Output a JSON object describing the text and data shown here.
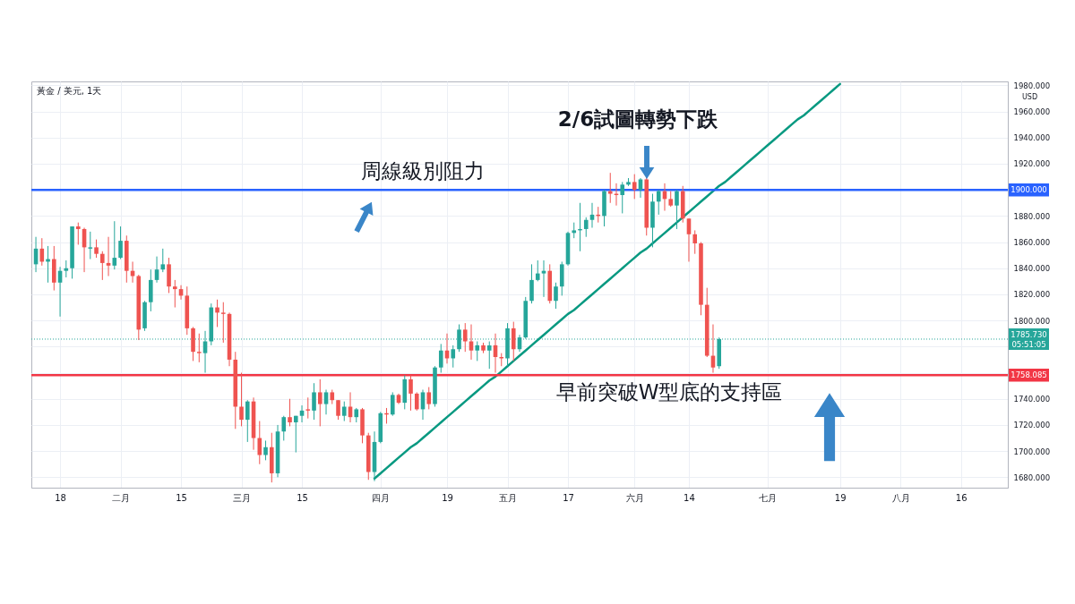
{
  "chart_data": {
    "type": "candlestick",
    "title": "黃金 / 美元, 1天",
    "ylabel": "USD",
    "categories": [
      null,
      null,
      null,
      null,
      "18",
      null,
      null,
      null,
      null,
      null,
      null,
      null,
      null,
      null,
      "二月",
      null,
      null,
      null,
      null,
      null,
      null,
      null,
      null,
      null,
      "15",
      null,
      null,
      null,
      null,
      null,
      null,
      null,
      null,
      null,
      "三月",
      null,
      null,
      null,
      null,
      null,
      null,
      null,
      null,
      null,
      "15",
      null,
      null,
      null,
      null,
      null,
      null,
      null,
      null,
      null,
      null,
      null,
      null,
      "四月",
      null,
      null,
      null,
      null,
      null,
      null,
      null,
      null,
      null,
      null,
      "19",
      null,
      null,
      null,
      null,
      null,
      null,
      null,
      null,
      null,
      "五月",
      null,
      null,
      null,
      null,
      null,
      null,
      null,
      null,
      null,
      "17",
      null,
      null,
      null,
      null,
      null,
      null,
      null,
      null,
      null,
      null,
      "六月",
      null,
      null,
      null,
      null,
      null,
      null,
      null,
      null,
      "14",
      null,
      null,
      null,
      null,
      null,
      null,
      null,
      null,
      null,
      null,
      null,
      null,
      "七月",
      null,
      null,
      null,
      null,
      null,
      null,
      null,
      null,
      null,
      null,
      null,
      "19",
      null,
      null,
      null,
      null,
      null,
      null,
      null,
      null,
      null,
      "八月",
      null,
      null,
      null,
      null,
      null,
      null,
      null,
      null,
      null,
      "16",
      null,
      null,
      null,
      null,
      null,
      null,
      null
    ],
    "ohlc": [
      [
        1843,
        1864,
        1837,
        1855
      ],
      [
        1855,
        1863,
        1842,
        1845
      ],
      [
        1845,
        1857,
        1829,
        1847
      ],
      [
        1847,
        1857,
        1823,
        1829
      ],
      [
        1829,
        1841,
        1803,
        1838
      ],
      [
        1838,
        1846,
        1833,
        1840
      ],
      [
        1840,
        1872,
        1832,
        1872
      ],
      [
        1872,
        1875,
        1858,
        1870
      ],
      [
        1870,
        1871,
        1837,
        1856
      ],
      [
        1855,
        1868,
        1847,
        1856
      ],
      [
        1856,
        1862,
        1848,
        1851
      ],
      [
        1851,
        1853,
        1831,
        1844
      ],
      [
        1844,
        1864,
        1834,
        1842
      ],
      [
        1842,
        1876,
        1839,
        1848
      ],
      [
        1848,
        1872,
        1847,
        1861
      ],
      [
        1861,
        1865,
        1829,
        1838
      ],
      [
        1838,
        1845,
        1829,
        1834
      ],
      [
        1834,
        1835,
        1785,
        1793
      ],
      [
        1794,
        1815,
        1792,
        1814
      ],
      [
        1814,
        1839,
        1807,
        1831
      ],
      [
        1831,
        1849,
        1829,
        1839
      ],
      [
        1839,
        1855,
        1837,
        1843
      ],
      [
        1843,
        1848,
        1821,
        1826
      ],
      [
        1826,
        1831,
        1810,
        1824
      ],
      [
        1824,
        1827,
        1816,
        1819
      ],
      [
        1819,
        1826,
        1789,
        1794
      ],
      [
        1794,
        1795,
        1769,
        1776
      ],
      [
        1776,
        1790,
        1768,
        1775
      ],
      [
        1775,
        1792,
        1760,
        1784
      ],
      [
        1784,
        1813,
        1781,
        1810
      ],
      [
        1810,
        1816,
        1795,
        1806
      ],
      [
        1806,
        1814,
        1783,
        1805
      ],
      [
        1805,
        1806,
        1765,
        1770
      ],
      [
        1770,
        1776,
        1717,
        1734
      ],
      [
        1734,
        1760,
        1719,
        1724
      ],
      [
        1724,
        1739,
        1707,
        1738
      ],
      [
        1738,
        1741,
        1701,
        1710
      ],
      [
        1710,
        1723,
        1690,
        1697
      ],
      [
        1697,
        1708,
        1693,
        1703
      ],
      [
        1703,
        1714,
        1676,
        1683
      ],
      [
        1683,
        1720,
        1680,
        1715
      ],
      [
        1715,
        1727,
        1708,
        1726
      ],
      [
        1726,
        1740,
        1719,
        1722
      ],
      [
        1722,
        1727,
        1699,
        1727
      ],
      [
        1727,
        1735,
        1722,
        1731
      ],
      [
        1732,
        1741,
        1725,
        1731
      ],
      [
        1731,
        1752,
        1724,
        1745
      ],
      [
        1745,
        1755,
        1719,
        1736
      ],
      [
        1736,
        1747,
        1728,
        1745
      ],
      [
        1745,
        1747,
        1736,
        1739
      ],
      [
        1739,
        1739,
        1724,
        1727
      ],
      [
        1727,
        1738,
        1723,
        1734
      ],
      [
        1734,
        1745,
        1722,
        1726
      ],
      [
        1726,
        1733,
        1722,
        1732
      ],
      [
        1732,
        1733,
        1706,
        1712
      ],
      [
        1712,
        1714,
        1678,
        1684
      ],
      [
        1684,
        1715,
        1677,
        1707
      ],
      [
        1707,
        1730,
        1706,
        1729
      ],
      [
        1729,
        1733,
        1721,
        1728
      ],
      [
        1728,
        1745,
        1727,
        1743
      ],
      [
        1743,
        1744,
        1736,
        1737
      ],
      [
        1737,
        1758,
        1732,
        1755
      ],
      [
        1755,
        1758,
        1731,
        1744
      ],
      [
        1744,
        1745,
        1731,
        1732
      ],
      [
        1732,
        1747,
        1724,
        1745
      ],
      [
        1745,
        1749,
        1732,
        1736
      ],
      [
        1736,
        1765,
        1734,
        1764
      ],
      [
        1764,
        1782,
        1760,
        1777
      ],
      [
        1777,
        1790,
        1767,
        1771
      ],
      [
        1771,
        1781,
        1764,
        1778
      ],
      [
        1778,
        1797,
        1776,
        1793
      ],
      [
        1793,
        1798,
        1776,
        1784
      ],
      [
        1784,
        1797,
        1770,
        1777
      ],
      [
        1777,
        1784,
        1769,
        1781
      ],
      [
        1781,
        1783,
        1775,
        1777
      ],
      [
        1777,
        1784,
        1763,
        1781
      ],
      [
        1781,
        1790,
        1760,
        1772
      ],
      [
        1772,
        1775,
        1765,
        1771
      ],
      [
        1771,
        1798,
        1765,
        1794
      ],
      [
        1794,
        1799,
        1769,
        1778
      ],
      [
        1778,
        1789,
        1776,
        1787
      ],
      [
        1787,
        1818,
        1786,
        1815
      ],
      [
        1815,
        1843,
        1813,
        1831
      ],
      [
        1831,
        1846,
        1830,
        1836
      ],
      [
        1836,
        1846,
        1818,
        1838
      ],
      [
        1838,
        1843,
        1813,
        1815
      ],
      [
        1815,
        1829,
        1809,
        1826
      ],
      [
        1826,
        1845,
        1819,
        1843
      ],
      [
        1843,
        1868,
        1842,
        1867
      ],
      [
        1867,
        1875,
        1863,
        1869
      ],
      [
        1869,
        1890,
        1853,
        1870
      ],
      [
        1870,
        1879,
        1864,
        1877
      ],
      [
        1877,
        1890,
        1871,
        1881
      ],
      [
        1881,
        1887,
        1875,
        1880
      ],
      [
        1880,
        1900,
        1872,
        1899
      ],
      [
        1899,
        1913,
        1890,
        1897
      ],
      [
        1897,
        1905,
        1888,
        1896
      ],
      [
        1896,
        1906,
        1882,
        1904
      ],
      [
        1904,
        1909,
        1903,
        1906
      ],
      [
        1906,
        1912,
        1893,
        1900
      ],
      [
        1900,
        1909,
        1894,
        1908
      ],
      [
        1908,
        1910,
        1865,
        1871
      ],
      [
        1871,
        1897,
        1856,
        1891
      ],
      [
        1891,
        1900,
        1881,
        1899
      ],
      [
        1899,
        1905,
        1884,
        1893
      ],
      [
        1893,
        1899,
        1887,
        1888
      ],
      [
        1888,
        1900,
        1870,
        1899
      ],
      [
        1899,
        1903,
        1875,
        1878
      ],
      [
        1878,
        1878,
        1845,
        1866
      ],
      [
        1866,
        1869,
        1851,
        1859
      ],
      [
        1859,
        1860,
        1804,
        1812
      ],
      [
        1812,
        1825,
        1772,
        1773
      ],
      [
        1773,
        1797,
        1760,
        1764
      ],
      [
        1765,
        1787,
        1763,
        1785.73
      ],
      null,
      null,
      null,
      null,
      null,
      null,
      null,
      null,
      null,
      null,
      null,
      null,
      null,
      null,
      null,
      null,
      null,
      null,
      null,
      null,
      null,
      null,
      null,
      null,
      null,
      null,
      null,
      null,
      null,
      null,
      null,
      null,
      null,
      null,
      null,
      null,
      null,
      null,
      null,
      null,
      null,
      null,
      null,
      null,
      null,
      null,
      null
    ],
    "colors": [
      "#26a69a",
      "#ef5350",
      "#26a69a",
      "#ef5350",
      "#26a69a",
      "#26a69a",
      "#26a69a",
      "#ef5350",
      "#ef5350",
      "#26a69a",
      "#ef5350",
      "#ef5350",
      "#ef5350",
      "#26a69a",
      "#26a69a",
      "#ef5350",
      "#ef5350",
      "#ef5350",
      "#26a69a",
      "#26a69a",
      "#26a69a",
      "#26a69a",
      "#ef5350",
      "#ef5350",
      "#ef5350",
      "#ef5350",
      "#ef5350",
      "#ef5350",
      "#26a69a",
      "#26a69a",
      "#ef5350",
      "#ef5350",
      "#ef5350",
      "#ef5350",
      "#ef5350",
      "#26a69a",
      "#ef5350",
      "#ef5350",
      "#26a69a",
      "#ef5350",
      "#26a69a",
      "#26a69a",
      "#ef5350",
      "#26a69a",
      "#26a69a",
      "#ef5350",
      "#26a69a",
      "#ef5350",
      "#26a69a",
      "#ef5350",
      "#ef5350",
      "#26a69a",
      "#ef5350",
      "#26a69a",
      "#ef5350",
      "#ef5350",
      "#26a69a",
      "#26a69a",
      "#ef5350",
      "#26a69a",
      "#ef5350",
      "#26a69a",
      "#ef5350",
      "#ef5350",
      "#26a69a",
      "#ef5350",
      "#26a69a",
      "#26a69a",
      "#ef5350",
      "#26a69a",
      "#26a69a",
      "#ef5350",
      "#ef5350",
      "#26a69a",
      "#ef5350",
      "#26a69a",
      "#ef5350",
      "#ef5350",
      "#26a69a",
      "#ef5350",
      "#26a69a",
      "#26a69a",
      "#26a69a",
      "#26a69a",
      "#26a69a",
      "#ef5350",
      "#26a69a",
      "#26a69a",
      "#26a69a",
      "#26a69a",
      "#26a69a",
      "#26a69a",
      "#26a69a",
      "#ef5350",
      "#26a69a",
      "#ef5350",
      "#ef5350",
      "#26a69a",
      "#26a69a",
      "#ef5350",
      "#26a69a",
      "#ef5350",
      "#26a69a",
      "#26a69a",
      "#ef5350",
      "#ef5350",
      "#26a69a",
      "#ef5350",
      "#ef5350",
      "#ef5350",
      "#ef5350",
      "#ef5350",
      "#ef5350",
      "#26a69a",
      null,
      null,
      null,
      null,
      null,
      null,
      null,
      null,
      null,
      null,
      null,
      null,
      null,
      null,
      null,
      null,
      null,
      null,
      null,
      null,
      null,
      null,
      null,
      null,
      null,
      null,
      null,
      null,
      null,
      null,
      null,
      null,
      null,
      null,
      null,
      null,
      null,
      null,
      null,
      null,
      null,
      null,
      null,
      null,
      null,
      null,
      null
    ],
    "series": [
      {
        "type": "line",
        "color": "#089981",
        "values": [
          null,
          null,
          null,
          null,
          null,
          null,
          null,
          null,
          null,
          null,
          null,
          null,
          null,
          null,
          null,
          null,
          null,
          null,
          null,
          null,
          null,
          null,
          null,
          null,
          null,
          null,
          null,
          null,
          null,
          null,
          null,
          null,
          null,
          null,
          null,
          null,
          null,
          null,
          null,
          null,
          null,
          null,
          null,
          null,
          null,
          null,
          null,
          null,
          null,
          null,
          null,
          null,
          null,
          null,
          null,
          null,
          1679,
          1683,
          1687,
          1691,
          1695,
          1699,
          1703,
          1706,
          1710,
          1714,
          1718,
          1722,
          1726,
          1730,
          1734,
          1738,
          1742,
          1746,
          1750,
          1754,
          1757,
          1761,
          1765,
          1769,
          1773,
          1777,
          1781,
          1785,
          1789,
          1793,
          1797,
          1801,
          1805,
          1808,
          1812,
          1816,
          1820,
          1824,
          1828,
          1832,
          1836,
          1840,
          1844,
          1848,
          1852,
          1855,
          1859,
          1863,
          1867,
          1871,
          1875,
          1879,
          1883,
          1887,
          1891,
          1895,
          1899,
          1903,
          1906,
          1910,
          1914,
          1918,
          1922,
          1926,
          1930,
          1934,
          1938,
          1942,
          1946,
          1950,
          1954,
          1957,
          1961,
          1965,
          1969,
          1973,
          1977,
          1981,
          null,
          null,
          null,
          null,
          null,
          null,
          null,
          null,
          null,
          null,
          null,
          null,
          null,
          null,
          null,
          null,
          null,
          null,
          null,
          null,
          null,
          null,
          null,
          null,
          null,
          null,
          null
        ]
      }
    ],
    "ylim": [
      1672,
      1983
    ],
    "yticks": [
      {
        "value": 1680,
        "label": "1680.000"
      },
      {
        "value": 1700,
        "label": "1700.000"
      },
      {
        "value": 1720,
        "label": "1720.000"
      },
      {
        "value": 1740,
        "label": "1740.000"
      },
      {
        "value": 1760,
        "label": null
      },
      {
        "value": 1780,
        "label": null
      },
      {
        "value": 1800,
        "label": "1800.000"
      },
      {
        "value": 1820,
        "label": "1820.000"
      },
      {
        "value": 1840,
        "label": "1840.000"
      },
      {
        "value": 1860,
        "label": "1860.000"
      },
      {
        "value": 1880,
        "label": "1880.000"
      },
      {
        "value": 1900,
        "label": null
      },
      {
        "value": 1920,
        "label": "1920.000"
      },
      {
        "value": 1940,
        "label": "1940.000"
      },
      {
        "value": 1960,
        "label": "1960.000"
      },
      {
        "value": 1980,
        "label": "1980.000"
      }
    ],
    "grid": true,
    "ref_lines": [
      {
        "axis": "y",
        "value": 1900,
        "label": "1900.000",
        "color": "#2962ff"
      },
      {
        "axis": "y",
        "value": 1785.73,
        "label": "1785.730\n05:51:05",
        "color": "#26a69a",
        "line_style": "dotted"
      },
      {
        "axis": "y",
        "value": 1758.085,
        "label": "1758.085",
        "color": "#f23645"
      }
    ],
    "annotations": [
      {
        "text": "周線級別阻力",
        "y": 1900
      },
      {
        "text": "2/6試圖轉勢下跌",
        "y": 1910
      },
      {
        "text": "早前突破W型底的支持區",
        "y": 1758.085
      }
    ]
  }
}
